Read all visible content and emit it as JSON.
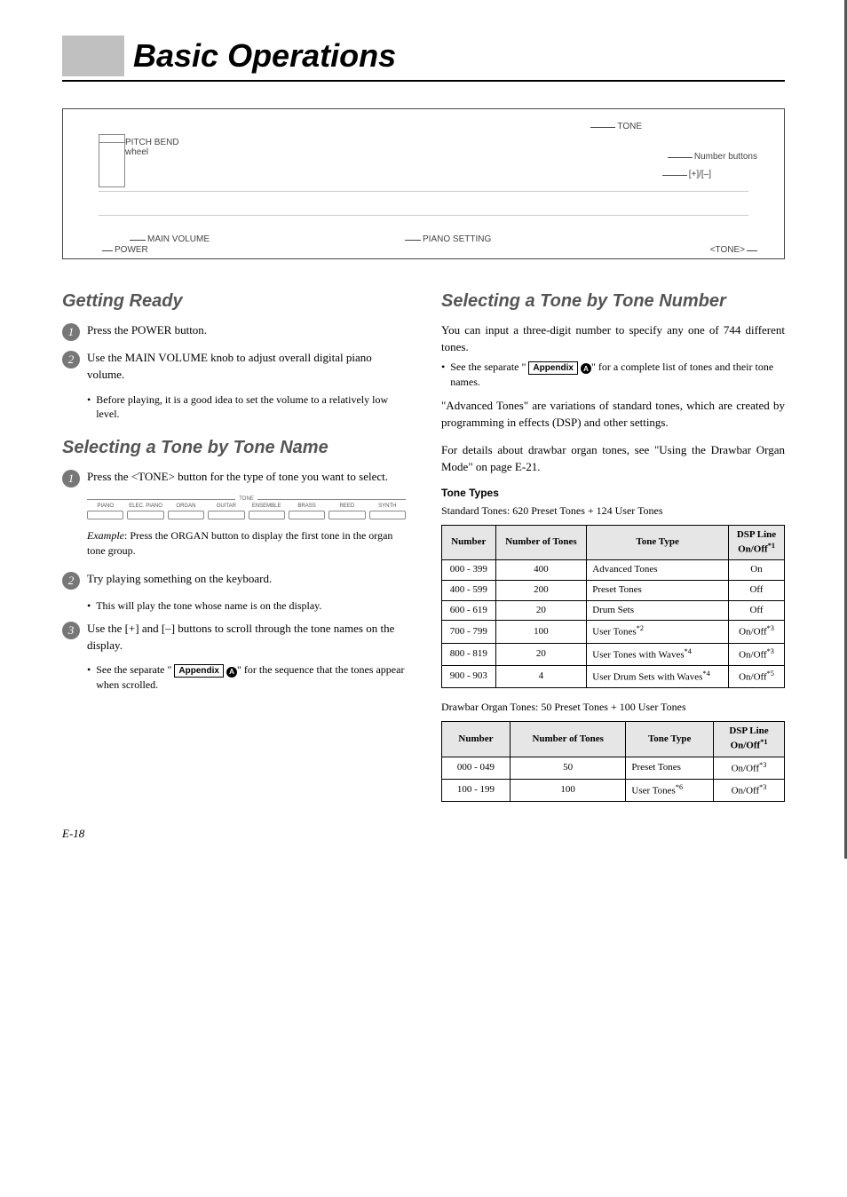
{
  "title": "Basic Operations",
  "diagram": {
    "tone": "TONE",
    "pitch": "PITCH BEND wheel",
    "numbtn": "Number buttons",
    "plusminus": "[+]/[–]",
    "mainvol": "MAIN VOLUME",
    "piano": "PIANO SETTING",
    "power": "POWER",
    "tonebtn": "<TONE>"
  },
  "left": {
    "h_ready": "Getting Ready",
    "ready1": "Press the POWER button.",
    "ready2": "Use the MAIN VOLUME knob to adjust overall digital piano volume.",
    "ready2b": "Before playing, it is a good idea to set the volume to a relatively low level.",
    "h_name": "Selecting a Tone by Tone Name",
    "name1": "Press the <TONE> button for the type of tone you want to select.",
    "tone_group_label": "TONE",
    "tone_groups": [
      "PIANO",
      "ELEC. PIANO",
      "ORGAN",
      "GUITAR",
      "ENSEMBLE",
      "BRASS",
      "REED",
      "SYNTH"
    ],
    "example_label": "Example",
    "example_text": ": Press the ORGAN button to display the first tone in the organ tone group.",
    "name2": "Try playing something on the keyboard.",
    "name2b": "This will play the tone whose name is on the display.",
    "name3": "Use the [+] and [–] buttons to scroll through the tone names on the display.",
    "name3b_pre": "See the separate \" ",
    "name3b_post": "\" for the sequence that the tones appear when scrolled.",
    "appendix": "Appendix",
    "circleA": "A"
  },
  "right": {
    "h_num": "Selecting a Tone by Tone Number",
    "p1": "You can input a three-digit number to specify any one of 744 different tones.",
    "p1b_pre": "See the separate \" ",
    "p1b_post": "\" for a complete list of tones and their tone names.",
    "p2": "\"Advanced Tones\" are variations of standard tones, which are created by programming in effects (DSP) and other settings.",
    "p3": "For details about drawbar organ tones, see \"Using the Drawbar Organ Mode\" on page E-21.",
    "subhead": "Tone Types",
    "cap1": "Standard Tones: 620 Preset Tones + 124 User Tones",
    "cap2": "Drawbar Organ Tones: 50 Preset Tones + 100 User Tones",
    "th_num": "Number",
    "th_cnt": "Number of Tones",
    "th_type": "Tone Type",
    "th_dsp_l1": "DSP Line",
    "th_dsp_l2": "On/Off",
    "t1": {
      "rows": [
        {
          "n": "000 - 399",
          "c": "400",
          "t": "Advanced Tones",
          "d": "On",
          "ds": ""
        },
        {
          "n": "400 - 599",
          "c": "200",
          "t": "Preset Tones",
          "d": "Off",
          "ds": ""
        },
        {
          "n": "600 - 619",
          "c": "20",
          "t": "Drum Sets",
          "d": "Off",
          "ds": ""
        },
        {
          "n": "700 - 799",
          "c": "100",
          "t": "User Tones",
          "tsup": "*2",
          "d": "On/Off",
          "ds": "*3"
        },
        {
          "n": "800 - 819",
          "c": "20",
          "t": "User Tones with Waves",
          "tsup": "*4",
          "d": "On/Off",
          "ds": "*3"
        },
        {
          "n": "900 - 903",
          "c": "4",
          "t": "User Drum Sets with Waves",
          "tsup": "*4",
          "d": "On/Off",
          "ds": "*5"
        }
      ]
    },
    "t2": {
      "rows": [
        {
          "n": "000 - 049",
          "c": "50",
          "t": "Preset Tones",
          "tsup": "",
          "d": "On/Off",
          "ds": "*3"
        },
        {
          "n": "100 - 199",
          "c": "100",
          "t": "User Tones",
          "tsup": "*6",
          "d": "On/Off",
          "ds": "*3"
        }
      ]
    },
    "sup1": "*1"
  },
  "appendix": "Appendix",
  "circleA": "A",
  "footer": "E-18"
}
